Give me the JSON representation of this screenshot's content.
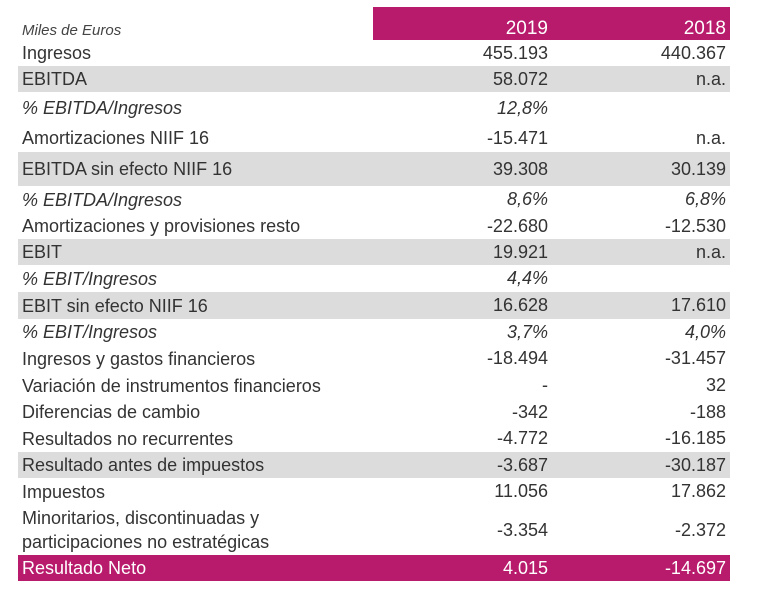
{
  "header": {
    "unit": "Miles de Euros",
    "years": [
      "2019",
      "2018"
    ]
  },
  "colors": {
    "accent": "#b81a6c",
    "highlight_row": "#dcdcdc"
  },
  "rows": [
    {
      "label": "Ingresos",
      "v2019": "455.193",
      "v2018": "440.367"
    },
    {
      "label": "EBITDA",
      "v2019": "58.072",
      "v2018": "n.a."
    },
    {
      "label": "% EBITDA/Ingresos",
      "v2019": "12,8%",
      "v2018": ""
    },
    {
      "label": "Amortizaciones NIIF 16",
      "v2019": "-15.471",
      "v2018": "n.a."
    },
    {
      "label": "EBITDA sin efecto NIIF 16",
      "v2019": "39.308",
      "v2018": "30.139"
    },
    {
      "label": "% EBITDA/Ingresos",
      "v2019": "8,6%",
      "v2018": "6,8%"
    },
    {
      "label": "Amortizaciones y provisiones resto",
      "v2019": "-22.680",
      "v2018": "-12.530"
    },
    {
      "label": "EBIT",
      "v2019": "19.921",
      "v2018": "n.a."
    },
    {
      "label": "% EBIT/Ingresos",
      "v2019": "4,4%",
      "v2018": ""
    },
    {
      "label": "EBIT sin efecto NIIF 16",
      "v2019": "16.628",
      "v2018": "17.610"
    },
    {
      "label": "% EBIT/Ingresos",
      "v2019": "3,7%",
      "v2018": "4,0%"
    },
    {
      "label": "Ingresos y gastos financieros",
      "v2019": "-18.494",
      "v2018": "-31.457"
    },
    {
      "label": "Variación de instrumentos financieros",
      "v2019": "-",
      "v2018": "32"
    },
    {
      "label": "Diferencias de cambio",
      "v2019": "-342",
      "v2018": "-188"
    },
    {
      "label": "Resultados no recurrentes",
      "v2019": "-4.772",
      "v2018": "-16.185"
    },
    {
      "label": "Resultado antes de impuestos",
      "v2019": "-3.687",
      "v2018": "-30.187"
    },
    {
      "label": "Impuestos",
      "v2019": "11.056",
      "v2018": "17.862"
    },
    {
      "label": "Minoritarios, discontinuadas y participaciones no estratégicas",
      "v2019": "-3.354",
      "v2018": "-2.372"
    },
    {
      "label": "Resultado Neto",
      "v2019": "4.015",
      "v2018": "-14.697"
    }
  ]
}
